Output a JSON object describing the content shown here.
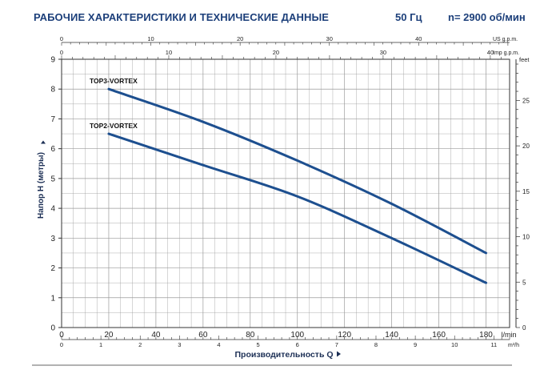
{
  "header": {
    "title": "РАБОЧИЕ ХАРАКТЕРИСТИКИ И ТЕХНИЧЕСКИЕ ДАННЫЕ",
    "frequency": "50 Гц",
    "speed": "n= 2900 об/мин"
  },
  "colors": {
    "curve": "#1d4f8f",
    "header": "#1c3f7a",
    "grid": "#9a9a9a"
  },
  "chart_data": {
    "type": "line",
    "title": "",
    "xlabel": "Производительность Q",
    "ylabel": "Напор H (метры)",
    "xlim": [
      0,
      190
    ],
    "ylim": [
      0,
      9
    ],
    "x_unit": "l/min",
    "x_ticks": [
      0,
      20,
      40,
      60,
      80,
      100,
      120,
      140,
      160,
      180
    ],
    "y_ticks": [
      0,
      1,
      2,
      3,
      4,
      5,
      6,
      7,
      8,
      9
    ],
    "grid": true,
    "series": [
      {
        "name": "TOP3-VORTEX",
        "x": [
          20,
          60,
          100,
          140,
          180
        ],
        "y": [
          8.0,
          6.9,
          5.6,
          4.15,
          2.5
        ]
      },
      {
        "name": "TOP2-VORTEX",
        "x": [
          20,
          60,
          100,
          140,
          180
        ],
        "y": [
          6.5,
          5.45,
          4.4,
          3.0,
          1.5
        ]
      }
    ],
    "secondary_axes": {
      "us_gpm": {
        "label": "US g.p.m.",
        "ticks": [
          0,
          10,
          20,
          30,
          40
        ],
        "xlim": [
          0,
          50.19
        ]
      },
      "imp_gpm": {
        "label": "Imp g.p.m.",
        "ticks": [
          0,
          10,
          20,
          30,
          40
        ],
        "xlim": [
          0,
          41.8
        ]
      },
      "m3h": {
        "label": "m³/h",
        "ticks": [
          0,
          1,
          2,
          3,
          4,
          5,
          6,
          7,
          8,
          9,
          10,
          11
        ],
        "xlim": [
          0,
          11.4
        ]
      },
      "feet": {
        "label": "feet",
        "ticks": [
          0,
          5,
          10,
          15,
          20,
          25
        ],
        "ylim": [
          0,
          29.53
        ]
      }
    }
  }
}
